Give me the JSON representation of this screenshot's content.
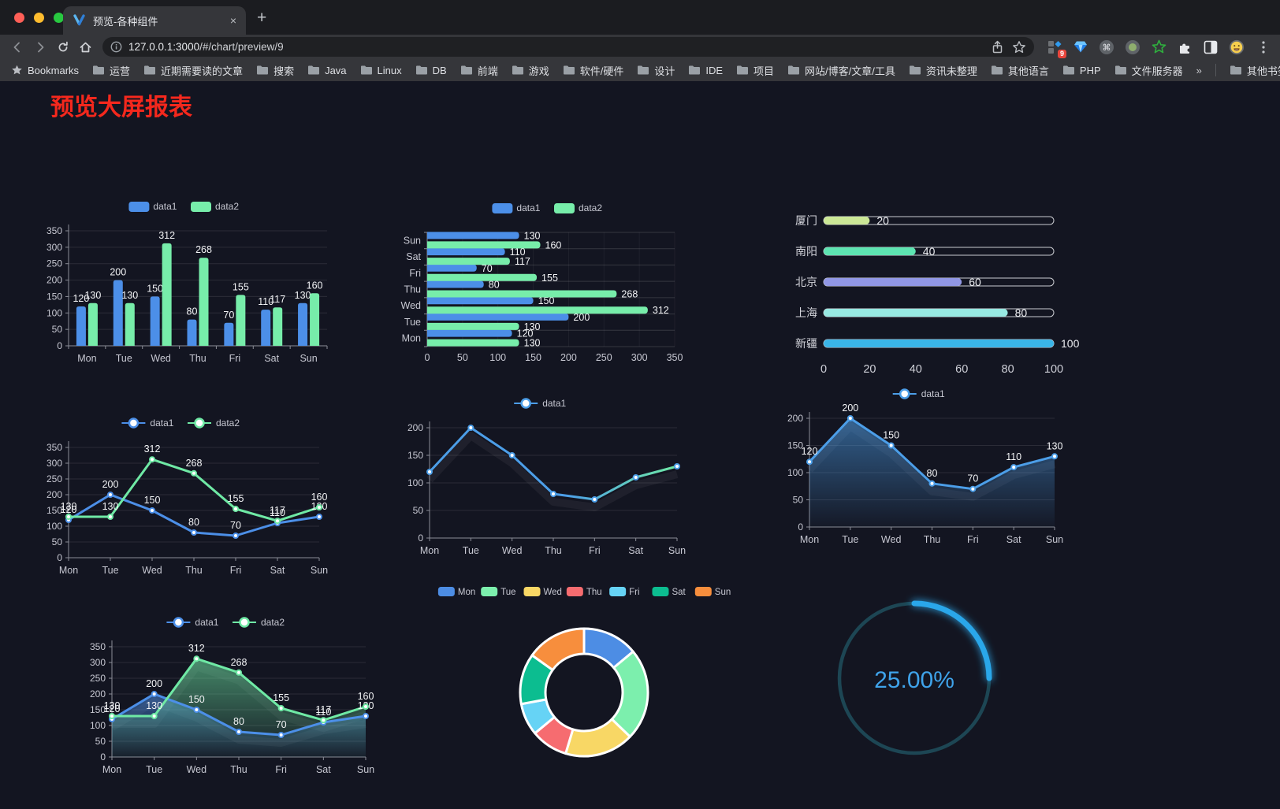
{
  "browser": {
    "tab_title": "预览-各种组件",
    "url_host": "127.0.0.1:3000",
    "url_path": "/#/chart/preview/9",
    "badge_count": "9",
    "new_tab_glyph": "+",
    "close_tab_glyph": "×",
    "bookmarks_label": "Bookmarks",
    "overflow_chevron": "»",
    "other_bookmarks_label": "其他书签",
    "bookmarks": [
      "运营",
      "近期需要读的文章",
      "搜索",
      "Java",
      "Linux",
      "DB",
      "前端",
      "游戏",
      "软件/硬件",
      "设计",
      "IDE",
      "项目",
      "网站/博客/文章/工具",
      "资讯未整理",
      "其他语言",
      "PHP",
      "文件服务器"
    ],
    "icons": [
      "vue-logo-icon",
      "back-icon",
      "forward-icon",
      "reload-icon",
      "home-icon",
      "site-info-icon",
      "share-icon",
      "bookmark-star-icon",
      "ext-grid-icon",
      "ext-gem-icon",
      "ext-command-icon",
      "ext-dot-icon",
      "ext-star-icon",
      "ext-puzzle-icon",
      "ext-splitview-icon",
      "ext-emoji-icon",
      "menu-kebab-icon",
      "folder-icon"
    ],
    "traffic_colors": {
      "close": "#ff5f57",
      "minimize": "#febc2e",
      "zoom": "#28c840"
    }
  },
  "page": {
    "title": "预览大屏报表",
    "title_color": "#f5281d",
    "background": "#131521"
  },
  "chart_data": [
    {
      "id": "bar-grouped",
      "type": "bar",
      "categories": [
        "Mon",
        "Tue",
        "Wed",
        "Thu",
        "Fri",
        "Sat",
        "Sun"
      ],
      "series": [
        {
          "name": "data1",
          "color": "#4c8fe8",
          "values": [
            120,
            200,
            150,
            80,
            70,
            110,
            130
          ]
        },
        {
          "name": "data2",
          "color": "#77edaa",
          "values": [
            130,
            130,
            312,
            268,
            155,
            117,
            160
          ]
        }
      ],
      "ylim": [
        0,
        350
      ],
      "ystep": 50,
      "legend": "rect",
      "value_labels": true
    },
    {
      "id": "hbar-grouped",
      "type": "hbar",
      "categories": [
        "Mon",
        "Tue",
        "Wed",
        "Thu",
        "Fri",
        "Sat",
        "Sun"
      ],
      "series": [
        {
          "name": "data1",
          "color": "#4c8fe8",
          "values": [
            120,
            200,
            150,
            80,
            70,
            110,
            130
          ]
        },
        {
          "name": "data2",
          "color": "#77edaa",
          "values": [
            130,
            130,
            312,
            268,
            155,
            117,
            160
          ]
        }
      ],
      "xlim": [
        0,
        350
      ],
      "xstep": 50,
      "legend": "rect",
      "value_labels": true
    },
    {
      "id": "city-progress",
      "type": "progress",
      "max": 100,
      "ticks": [
        0,
        20,
        40,
        60,
        80,
        100
      ],
      "items": [
        {
          "label": "厦门",
          "value": 20,
          "color": "#cbe796"
        },
        {
          "label": "南阳",
          "value": 40,
          "color": "#5de4b1"
        },
        {
          "label": "北京",
          "value": 60,
          "color": "#9197e5"
        },
        {
          "label": "上海",
          "value": 80,
          "color": "#97e9e2"
        },
        {
          "label": "新疆",
          "value": 100,
          "color": "#3ab5e8"
        }
      ]
    },
    {
      "id": "line-two",
      "type": "line",
      "categories": [
        "Mon",
        "Tue",
        "Wed",
        "Thu",
        "Fri",
        "Sat",
        "Sun"
      ],
      "series": [
        {
          "name": "data1",
          "color": "#4c8fe8",
          "values": [
            120,
            200,
            150,
            80,
            70,
            110,
            130
          ]
        },
        {
          "name": "data2",
          "color": "#6fe9a5",
          "values": [
            130,
            130,
            312,
            268,
            155,
            117,
            160
          ]
        }
      ],
      "ylim": [
        0,
        350
      ],
      "ystep": 50,
      "legend": "marker",
      "value_labels": true
    },
    {
      "id": "line-gradient",
      "type": "line",
      "categories": [
        "Mon",
        "Tue",
        "Wed",
        "Thu",
        "Fri",
        "Sat",
        "Sun"
      ],
      "series": [
        {
          "name": "data1",
          "color": "#4c9ee8",
          "gradient": [
            "#4c9ee8",
            "#6fe9a5"
          ],
          "values": [
            120,
            200,
            150,
            80,
            70,
            110,
            130
          ]
        }
      ],
      "ylim": [
        0,
        200
      ],
      "ystep": 50,
      "legend": "marker",
      "value_labels": false,
      "shadow": true
    },
    {
      "id": "area-single",
      "type": "line",
      "area": true,
      "categories": [
        "Mon",
        "Tue",
        "Wed",
        "Thu",
        "Fri",
        "Sat",
        "Sun"
      ],
      "series": [
        {
          "name": "data1",
          "color": "#4c9ee8",
          "values": [
            120,
            200,
            150,
            80,
            70,
            110,
            130
          ]
        }
      ],
      "ylim": [
        0,
        200
      ],
      "ystep": 50,
      "legend": "marker",
      "value_labels": true,
      "shadow": true
    },
    {
      "id": "area-two",
      "type": "line",
      "area": true,
      "categories": [
        "Mon",
        "Tue",
        "Wed",
        "Thu",
        "Fri",
        "Sat",
        "Sun"
      ],
      "series": [
        {
          "name": "data1",
          "color": "#4c8fe8",
          "values": [
            120,
            200,
            150,
            80,
            70,
            110,
            130
          ]
        },
        {
          "name": "data2",
          "color": "#6fe9a5",
          "values": [
            130,
            130,
            312,
            268,
            155,
            117,
            160
          ]
        }
      ],
      "ylim": [
        0,
        350
      ],
      "ystep": 50,
      "legend": "marker",
      "value_labels": true,
      "shadow": true
    },
    {
      "id": "donut-days",
      "type": "donut",
      "items": [
        {
          "label": "Mon",
          "value": 120,
          "color": "#4d8de4"
        },
        {
          "label": "Tue",
          "value": 200,
          "color": "#7cefad"
        },
        {
          "label": "Wed",
          "value": 150,
          "color": "#f8d765"
        },
        {
          "label": "Thu",
          "value": 80,
          "color": "#f66c70"
        },
        {
          "label": "Fri",
          "value": 70,
          "color": "#66d3f5"
        },
        {
          "label": "Sat",
          "value": 110,
          "color": "#0cbd90"
        },
        {
          "label": "Sun",
          "value": 130,
          "color": "#f78e3d"
        }
      ]
    },
    {
      "id": "gauge-percent",
      "type": "gauge",
      "value": 25,
      "display": "25.00%",
      "color": "#2ba7ea",
      "track_color": "#1d4654",
      "text_color": "#3fa3ea"
    }
  ]
}
